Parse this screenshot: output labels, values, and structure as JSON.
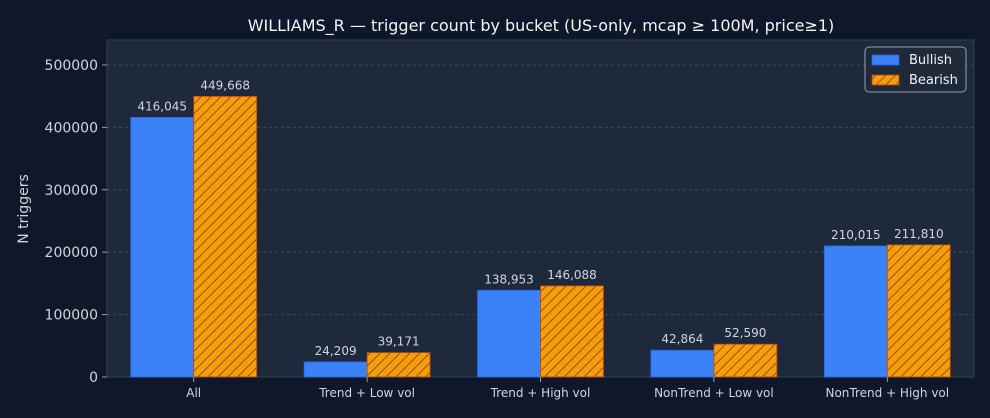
{
  "chart_data": {
    "type": "bar",
    "title": "WILLIAMS_R — trigger count by bucket (US-only, mcap ≥ 100M, price≥1)",
    "xlabel": "",
    "ylabel": "N triggers",
    "ylim": [
      0,
      540000
    ],
    "yticks": [
      0,
      100000,
      200000,
      300000,
      400000,
      500000
    ],
    "grid": true,
    "legend_position": "top-right",
    "categories": [
      "All",
      "Trend + Low vol",
      "Trend + High vol",
      "NonTrend + Low vol",
      "NonTrend + High vol"
    ],
    "series": [
      {
        "name": "Bullish",
        "color": "#3b82f6",
        "hatch": false,
        "values": [
          416045,
          24209,
          138953,
          42864,
          210015
        ],
        "labels": [
          "416,045",
          "24,209",
          "138,953",
          "42,864",
          "210,015"
        ]
      },
      {
        "name": "Bearish",
        "color": "#f59e0b",
        "hatch": true,
        "values": [
          449668,
          39171,
          146088,
          52590,
          211810
        ],
        "labels": [
          "449,668",
          "39,171",
          "146,088",
          "52,590",
          "211,810"
        ]
      }
    ]
  }
}
